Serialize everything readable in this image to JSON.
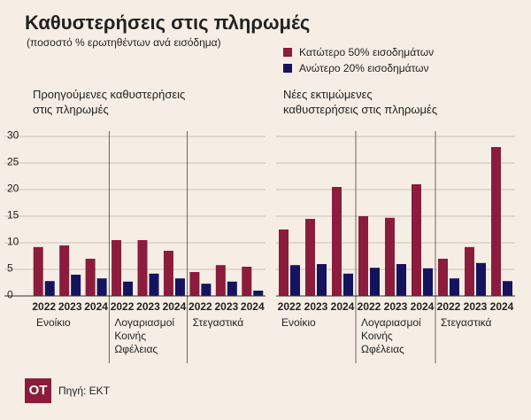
{
  "header": {
    "title": "Καθυστερήσεις στις πληρωμές",
    "subtitle": "(ποσοστό % ερωτηθέντων ανά εισόδημα)"
  },
  "chart_data": [
    {
      "type": "bar",
      "title": "Προηγούμενες καθυστερήσεις στις πληρωμές",
      "groups": [
        "Ενοίκιο",
        "Λογαριασμοί Κοινής Ωφέλειας",
        "Στεγαστικά"
      ],
      "categories": [
        "2022",
        "2023",
        "2024",
        "2022",
        "2023",
        "2024",
        "2022",
        "2023",
        "2024"
      ],
      "ylim": [
        0,
        30
      ],
      "yticks": [
        0,
        5,
        10,
        15,
        20,
        25,
        30
      ],
      "grid": true,
      "series": [
        {
          "name": "Κατώτερο 50% εισοδημάτων",
          "color": "#8c1c3c",
          "values": [
            9.2,
            9.5,
            7.0,
            10.5,
            10.5,
            8.5,
            4.5,
            5.8,
            5.5
          ]
        },
        {
          "name": "Ανώτερο 20% εισοδημάτων",
          "color": "#14145e",
          "values": [
            2.8,
            4.0,
            3.3,
            2.7,
            4.2,
            3.3,
            2.3,
            2.7,
            1.0
          ]
        }
      ]
    },
    {
      "type": "bar",
      "title": "Νέες εκτιμώμενες καθυστερήσεις στις πληρωμές",
      "groups": [
        "Ενοίκιο",
        "Λογαριασμοί Κοινής Ωφέλειας",
        "Στεγαστικά"
      ],
      "categories": [
        "2022",
        "2023",
        "2024",
        "2022",
        "2023",
        "2024",
        "2022",
        "2023",
        "2024"
      ],
      "ylim": [
        0,
        30
      ],
      "yticks": [
        0,
        5,
        10,
        15,
        20,
        25,
        30
      ],
      "grid": true,
      "series": [
        {
          "color": "#8c1c3c",
          "values": [
            12.5,
            14.5,
            20.5,
            15.0,
            14.7,
            21.0,
            7.0,
            9.2,
            28.0
          ]
        },
        {
          "color": "#14145e",
          "values": [
            5.8,
            6.0,
            4.2,
            5.3,
            6.0,
            5.2,
            3.3,
            6.2,
            2.8
          ]
        }
      ]
    }
  ],
  "footer": {
    "logo": "ΟΤ",
    "source": "Πηγή: ΕΚΤ"
  }
}
